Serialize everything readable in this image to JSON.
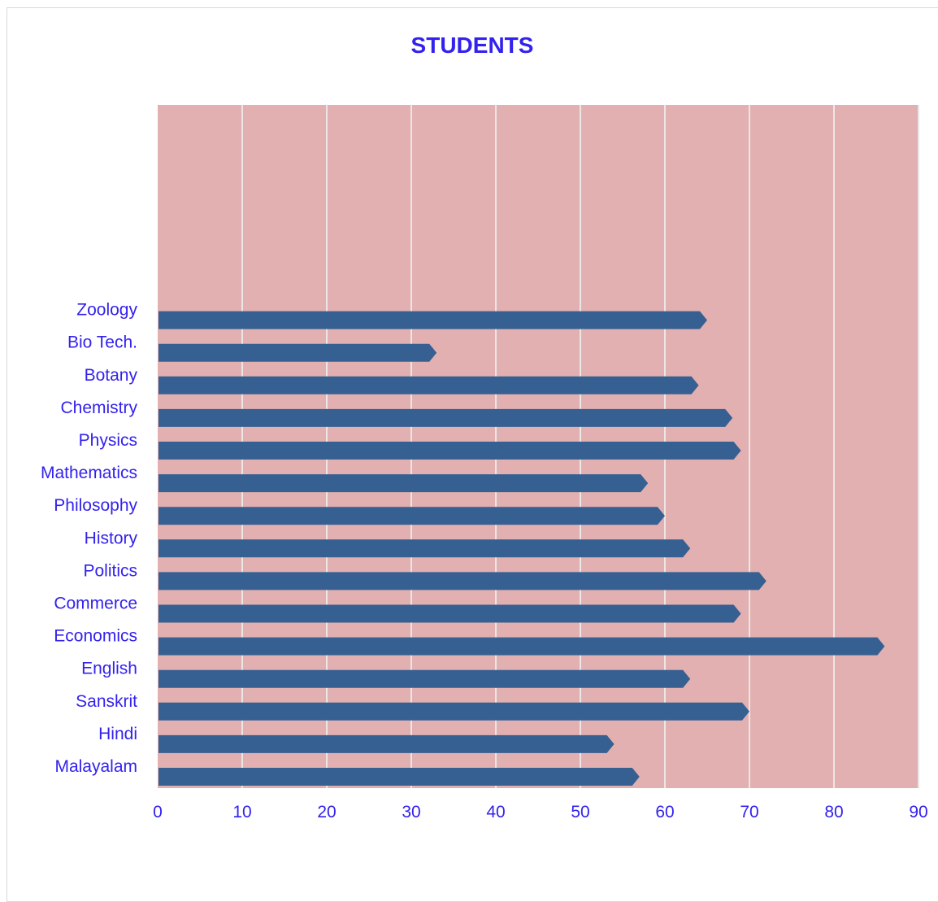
{
  "colors": {
    "plot_background": "#e2b0b0",
    "bar": "#376092",
    "gridline": "#ebe6e6",
    "text": "#3322ee"
  },
  "chart_data": {
    "type": "bar",
    "orientation": "horizontal",
    "title": "STUDENTS",
    "categories": [
      "Malayalam",
      "Hindi",
      "Sanskrit",
      "English",
      "Economics",
      "Commerce",
      "Politics",
      "History",
      "Philosophy",
      "Mathematics",
      "Physics",
      "Chemistry",
      "Botany",
      "Bio Tech.",
      "Zoology"
    ],
    "values": [
      57,
      54,
      70,
      63,
      86,
      69,
      72,
      63,
      60,
      58,
      69,
      68,
      64,
      33,
      65
    ],
    "xlim": [
      0,
      90
    ],
    "xticks": [
      0,
      10,
      20,
      30,
      40,
      50,
      60,
      70,
      80,
      90
    ],
    "grid": true,
    "legend": "none"
  }
}
